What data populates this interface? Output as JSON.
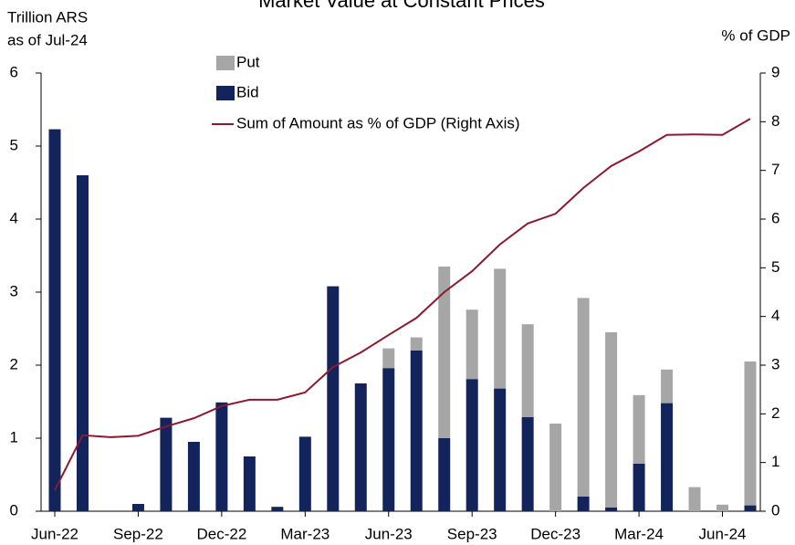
{
  "chart_data": {
    "type": "bar_line",
    "title": "Market Value at Constant Prices",
    "y_label_lines": [
      "Trillion ARS",
      "as of Jul-24"
    ],
    "y2_label": "% of GDP",
    "categories": [
      "Jun-22",
      null,
      null,
      "Sep-22",
      null,
      null,
      "Dec-22",
      null,
      null,
      "Mar-23",
      null,
      null,
      "Jun-23",
      null,
      null,
      "Sep-23",
      null,
      null,
      "Dec-23",
      null,
      null,
      "Mar-24",
      null,
      null,
      "Jun-24",
      null
    ],
    "series": [
      {
        "name": "Bid",
        "color": "#13235b",
        "kind": "bar",
        "values": [
          5.23,
          4.6,
          0,
          0.1,
          1.28,
          0.95,
          1.49,
          0.75,
          0.06,
          1.02,
          3.08,
          1.75,
          1.96,
          2.2,
          1.0,
          1.81,
          1.68,
          1.29,
          0,
          0.2,
          0.05,
          0.65,
          1.48,
          0,
          0,
          0.08
        ]
      },
      {
        "name": "Put",
        "color": "#a6a6a6",
        "kind": "bar",
        "values": [
          0,
          0,
          0,
          0,
          0,
          0,
          0,
          0,
          0,
          0,
          0,
          0,
          0.27,
          0.18,
          2.35,
          0.95,
          1.64,
          1.27,
          1.2,
          2.72,
          2.4,
          0.94,
          0.46,
          0.33,
          0.09,
          1.97
        ]
      },
      {
        "name": "Sum of Amount as % of GDP (Right Axis)",
        "color": "#8b1a2e",
        "kind": "line",
        "axis": "y2",
        "values": [
          0.43,
          1.56,
          1.52,
          1.55,
          1.74,
          1.91,
          2.16,
          2.29,
          2.29,
          2.44,
          2.96,
          3.26,
          3.62,
          3.97,
          4.5,
          4.93,
          5.48,
          5.91,
          6.11,
          6.64,
          7.09,
          7.39,
          7.73,
          7.74,
          7.73,
          8.06
        ]
      }
    ],
    "ylim": [
      0,
      6
    ],
    "yticks": [
      0,
      1,
      2,
      3,
      4,
      5,
      6
    ],
    "y2lim": [
      0,
      9
    ],
    "y2ticks": [
      0,
      1,
      2,
      3,
      4,
      5,
      6,
      7,
      8,
      9
    ],
    "grid": false
  }
}
